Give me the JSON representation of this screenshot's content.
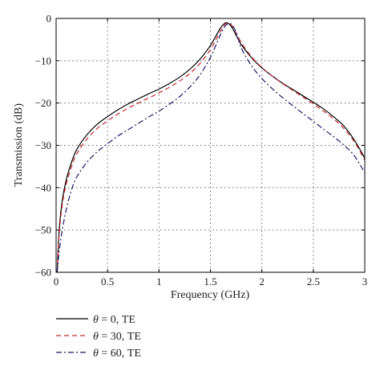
{
  "chart_data": {
    "type": "line",
    "xlabel": "Frequency (GHz)",
    "ylabel": "Transmission (dB)",
    "xlim": [
      0,
      3
    ],
    "ylim": [
      -60,
      0
    ],
    "xticks": [
      0,
      0.5,
      1,
      1.5,
      2,
      2.5,
      3
    ],
    "xtick_labels": [
      "0",
      "0.5",
      "1",
      "1.5",
      "2",
      "2.5",
      "3"
    ],
    "yticks": [
      0,
      -10,
      -20,
      -30,
      -40,
      -50,
      -60
    ],
    "ytick_labels": [
      "0",
      "−10",
      "−20",
      "−30",
      "−40",
      "−50",
      "−60"
    ],
    "grid": true,
    "legend_position": "below",
    "series": [
      {
        "name": "θ = 0, TE",
        "name_parts": [
          "θ",
          " = 0, TE"
        ],
        "color": "#000000",
        "style": "solid",
        "x": [
          0.01,
          0.03,
          0.06,
          0.1,
          0.15,
          0.2,
          0.3,
          0.4,
          0.5,
          0.6,
          0.7,
          0.8,
          0.9,
          1.0,
          1.1,
          1.2,
          1.3,
          1.4,
          1.5,
          1.55,
          1.6,
          1.65,
          1.7,
          1.75,
          1.8,
          1.9,
          2.0,
          2.1,
          2.2,
          2.3,
          2.4,
          2.5,
          2.6,
          2.7,
          2.8,
          2.9,
          3.0
        ],
        "y": [
          -60,
          -50,
          -43,
          -38,
          -34,
          -31,
          -27.5,
          -25,
          -23.2,
          -21.6,
          -20.2,
          -19,
          -17.8,
          -16.7,
          -15.4,
          -13.9,
          -12.0,
          -9.6,
          -6.4,
          -4.3,
          -2.2,
          -1.0,
          -1.8,
          -4.0,
          -6.2,
          -9.3,
          -11.7,
          -13.6,
          -15.3,
          -16.8,
          -18.3,
          -19.8,
          -21.4,
          -23.3,
          -25.5,
          -28.8,
          -33
        ]
      },
      {
        "name": "θ = 30, TE",
        "name_parts": [
          "θ",
          " = 30, TE"
        ],
        "color": "#c0272d",
        "style": "dashed",
        "x": [
          0.01,
          0.03,
          0.06,
          0.1,
          0.15,
          0.2,
          0.3,
          0.4,
          0.5,
          0.6,
          0.7,
          0.8,
          0.9,
          1.0,
          1.1,
          1.2,
          1.3,
          1.4,
          1.5,
          1.55,
          1.6,
          1.65,
          1.7,
          1.75,
          1.8,
          1.9,
          2.0,
          2.1,
          2.2,
          2.3,
          2.4,
          2.5,
          2.6,
          2.7,
          2.8,
          2.9,
          3.0
        ],
        "y": [
          -60,
          -51,
          -44,
          -39,
          -35,
          -32,
          -28.5,
          -26,
          -24.2,
          -22.6,
          -21.2,
          -20,
          -18.8,
          -17.6,
          -16.3,
          -14.8,
          -13.0,
          -10.6,
          -7.4,
          -5.2,
          -2.9,
          -1.2,
          -1.5,
          -3.4,
          -5.7,
          -9.1,
          -11.6,
          -13.6,
          -15.4,
          -17.0,
          -18.6,
          -20.2,
          -21.9,
          -23.8,
          -26.1,
          -29.2,
          -33.5
        ]
      },
      {
        "name": "θ = 60, TE",
        "name_parts": [
          "θ",
          " = 60, TE"
        ],
        "color": "#1a1a66",
        "style": "dashdot",
        "x": [
          0.01,
          0.03,
          0.06,
          0.1,
          0.15,
          0.2,
          0.3,
          0.4,
          0.5,
          0.6,
          0.7,
          0.8,
          0.9,
          1.0,
          1.1,
          1.2,
          1.3,
          1.4,
          1.5,
          1.55,
          1.6,
          1.65,
          1.7,
          1.75,
          1.8,
          1.9,
          2.0,
          2.1,
          2.2,
          2.3,
          2.4,
          2.5,
          2.6,
          2.7,
          2.8,
          2.9,
          3.0
        ],
        "y": [
          -60,
          -55,
          -50,
          -45,
          -40.5,
          -37.5,
          -34,
          -31.5,
          -29.6,
          -27.8,
          -26.3,
          -24.8,
          -23.3,
          -21.9,
          -20.3,
          -18.5,
          -16.2,
          -13.3,
          -9.2,
          -6.5,
          -3.7,
          -1.6,
          -1.3,
          -3.3,
          -7.0,
          -11.2,
          -14.2,
          -16.6,
          -18.7,
          -20.6,
          -22.5,
          -24.3,
          -26.2,
          -28.0,
          -30.0,
          -32.5,
          -36.5
        ]
      }
    ]
  }
}
